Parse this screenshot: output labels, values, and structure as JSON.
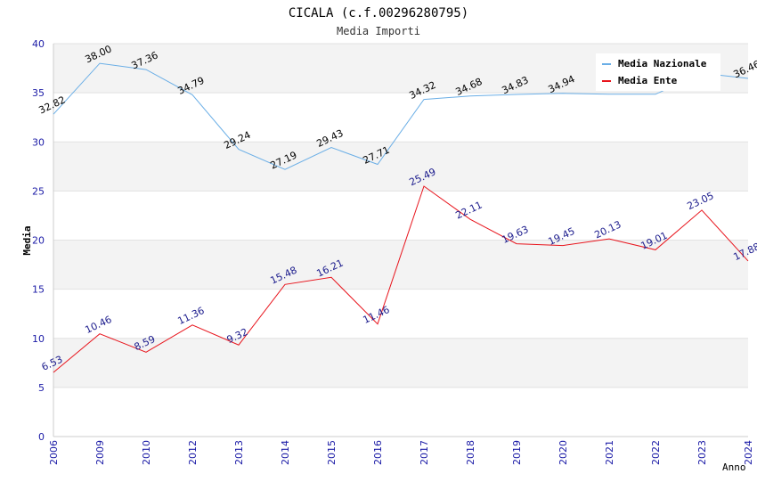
{
  "chart_data": {
    "type": "line",
    "title": "CICALA (c.f.00296280795)",
    "subtitle": "Media Importi",
    "xlabel": "Anno",
    "ylabel": "Media",
    "ylim": [
      0,
      40
    ],
    "yticks": [
      "0",
      "5",
      "10",
      "15",
      "20",
      "25",
      "30",
      "35",
      "40"
    ],
    "categories": [
      "2006",
      "2009",
      "2010",
      "2012",
      "2013",
      "2014",
      "2015",
      "2016",
      "2017",
      "2018",
      "2019",
      "2020",
      "2021",
      "2022",
      "2023",
      "2024"
    ],
    "grid": true,
    "legend_position": "top-right",
    "series": [
      {
        "name": "Media Nazionale",
        "color": "#6aaee6",
        "label_color": "#000000",
        "values": [
          32.82,
          38.0,
          37.36,
          34.79,
          29.24,
          27.19,
          29.43,
          27.71,
          34.32,
          34.68,
          34.83,
          34.94,
          34.85,
          34.85,
          37.0,
          36.46
        ],
        "labels": [
          "32.82",
          "38.00",
          "37.36",
          "34.79",
          "29.24",
          "27.19",
          "29.43",
          "27.71",
          "34.32",
          "34.68",
          "34.83",
          "34.94",
          "",
          "",
          "",
          "36.46"
        ]
      },
      {
        "name": "Media Ente",
        "color": "#e8141c",
        "label_color": "#1a1a8c",
        "values": [
          6.53,
          10.46,
          8.59,
          11.36,
          9.32,
          15.48,
          16.21,
          11.46,
          25.49,
          22.11,
          19.63,
          19.45,
          20.13,
          19.01,
          23.05,
          17.88
        ],
        "labels": [
          "6.53",
          "10.46",
          "8.59",
          "11.36",
          "9.32",
          "15.48",
          "16.21",
          "11.46",
          "25.49",
          "22.11",
          "19.63",
          "19.45",
          "20.13",
          "19.01",
          "23.05",
          "17.88"
        ]
      }
    ]
  }
}
